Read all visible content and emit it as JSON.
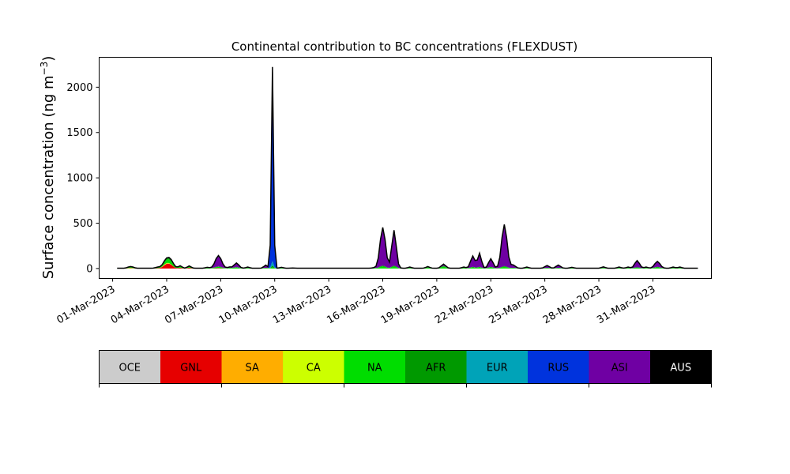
{
  "chart_data": {
    "type": "area",
    "title": "Continental contribution to BC concentrations (FLEXDUST)",
    "ylabel_main": "Surface concentration (ng m",
    "ylabel_exp": "−3",
    "ylabel_close": ")",
    "xlabel": "",
    "ylim": [
      -110,
      2330
    ],
    "xlim": [
      "2023-02-28T06:00",
      "2023-04-03T06:00"
    ],
    "yticks": [
      0,
      500,
      1000,
      1500,
      2000
    ],
    "xticks": [
      "01-Mar-2023",
      "04-Mar-2023",
      "07-Mar-2023",
      "10-Mar-2023",
      "13-Mar-2023",
      "16-Mar-2023",
      "19-Mar-2023",
      "22-Mar-2023",
      "25-Mar-2023",
      "28-Mar-2023",
      "31-Mar-2023"
    ],
    "xtick_dates": [
      "2023-03-01",
      "2023-03-04",
      "2023-03-07",
      "2023-03-10",
      "2023-03-13",
      "2023-03-16",
      "2023-03-19",
      "2023-03-22",
      "2023-03-25",
      "2023-03-28",
      "2023-03-31"
    ],
    "series_order": [
      "OCE",
      "GNL",
      "SA",
      "CA",
      "NA",
      "AFR",
      "EUR",
      "RUS",
      "ASI",
      "AUS"
    ],
    "legend": [
      {
        "name": "OCE",
        "color": "#cccccc",
        "text_color": "#000000"
      },
      {
        "name": "GNL",
        "color": "#e60000",
        "text_color": "#000000"
      },
      {
        "name": "SA",
        "color": "#ffad00",
        "text_color": "#000000"
      },
      {
        "name": "CA",
        "color": "#ccff00",
        "text_color": "#000000"
      },
      {
        "name": "NA",
        "color": "#00dd00",
        "text_color": "#000000"
      },
      {
        "name": "AFR",
        "color": "#009900",
        "text_color": "#000000"
      },
      {
        "name": "EUR",
        "color": "#00a3b8",
        "text_color": "#000000"
      },
      {
        "name": "RUS",
        "color": "#0033dd",
        "text_color": "#000000"
      },
      {
        "name": "ASI",
        "color": "#6f00a3",
        "text_color": "#000000"
      },
      {
        "name": "AUS",
        "color": "#000000",
        "text_color": "#ffffff"
      }
    ],
    "time_start": "2023-03-01T06:00",
    "time_step_hours": 3,
    "baseline": [
      {
        "t": "2023-03-01T06:00",
        "v": 3
      },
      {
        "t": "2023-04-02T12:00",
        "v": 3
      }
    ],
    "events": [
      {
        "t": "2023-03-02T00:00",
        "w": 0.15,
        "GNL": 3,
        "CA": 5,
        "NA": 5,
        "ASI": 6
      },
      {
        "t": "2023-03-03T12:00",
        "w": 0.12,
        "GNL": 3,
        "NA": 5,
        "ASI": 3
      },
      {
        "t": "2023-03-04T00:00",
        "w": 0.18,
        "GNL": 45,
        "SA": 5,
        "CA": 5,
        "NA": 30,
        "AFR": 10,
        "ASI": 5
      },
      {
        "t": "2023-03-04T06:00",
        "w": 0.15,
        "GNL": 25,
        "NA": 20,
        "AFR": 8,
        "ASI": 5
      },
      {
        "t": "2023-03-04T18:00",
        "w": 0.1,
        "GNL": 10,
        "NA": 12,
        "AFR": 5
      },
      {
        "t": "2023-03-05T06:00",
        "w": 0.1,
        "GNL": 10,
        "NA": 10,
        "AFR": 5
      },
      {
        "t": "2023-03-06T06:00",
        "w": 0.1,
        "NA": 5,
        "ASI": 5
      },
      {
        "t": "2023-03-06T21:00",
        "w": 0.17,
        "GNL": 5,
        "NA": 10,
        "AFR": 5,
        "ASI": 120
      },
      {
        "t": "2023-03-07T12:00",
        "w": 0.1,
        "NA": 5,
        "ASI": 8
      },
      {
        "t": "2023-03-07T21:00",
        "w": 0.13,
        "NA": 8,
        "AFR": 5,
        "ASI": 45
      },
      {
        "t": "2023-03-08T12:00",
        "w": 0.1,
        "NA": 5,
        "ASI": 8
      },
      {
        "t": "2023-03-09T12:00",
        "w": 0.1,
        "NA": 5,
        "ASI": 30
      },
      {
        "t": "2023-03-09T21:00",
        "w": 0.06,
        "NA": 10,
        "AFR": 20,
        "EUR": 50,
        "RUS": 2100,
        "ASI": 30,
        "AUS": 10
      },
      {
        "t": "2023-03-10T09:00",
        "w": 0.1,
        "NA": 5,
        "RUS": 5
      },
      {
        "t": "2023-03-11T00:00",
        "w": 0.1,
        "NA": 3
      },
      {
        "t": "2023-03-15T12:00",
        "w": 0.1,
        "NA": 5
      },
      {
        "t": "2023-03-16T00:00",
        "w": 0.15,
        "NA": 20,
        "AFR": 10,
        "ASI": 420
      },
      {
        "t": "2023-03-16T15:00",
        "w": 0.12,
        "NA": 20,
        "AFR": 10,
        "ASI": 390
      },
      {
        "t": "2023-03-17T12:00",
        "w": 0.1,
        "NA": 5,
        "ASI": 8
      },
      {
        "t": "2023-03-18T12:00",
        "w": 0.1,
        "NA": 10,
        "ASI": 8
      },
      {
        "t": "2023-03-19T09:00",
        "w": 0.12,
        "NA": 20,
        "AFR": 5,
        "ASI": 20
      },
      {
        "t": "2023-03-20T12:00",
        "w": 0.1,
        "NA": 8,
        "ASI": 5
      },
      {
        "t": "2023-03-21T00:00",
        "w": 0.12,
        "NA": 10,
        "AFR": 5,
        "ASI": 120
      },
      {
        "t": "2023-03-21T09:00",
        "w": 0.1,
        "NA": 10,
        "AFR": 5,
        "ASI": 150
      },
      {
        "t": "2023-03-22T00:00",
        "w": 0.12,
        "NA": 10,
        "AFR": 5,
        "ASI": 90
      },
      {
        "t": "2023-03-22T18:00",
        "w": 0.15,
        "NA": 15,
        "AFR": 8,
        "ASI": 460
      },
      {
        "t": "2023-03-23T06:00",
        "w": 0.12,
        "NA": 5,
        "ASI": 30
      },
      {
        "t": "2023-03-24T00:00",
        "w": 0.1,
        "NA": 5,
        "ASI": 8
      },
      {
        "t": "2023-03-25T03:00",
        "w": 0.12,
        "NA": 5,
        "ASI": 25
      },
      {
        "t": "2023-03-25T18:00",
        "w": 0.12,
        "NA": 5,
        "ASI": 30
      },
      {
        "t": "2023-03-26T12:00",
        "w": 0.1,
        "NA": 5,
        "ASI": 5
      },
      {
        "t": "2023-03-28T06:00",
        "w": 0.1,
        "NA": 5,
        "ASI": 10
      },
      {
        "t": "2023-03-29T03:00",
        "w": 0.1,
        "NA": 5,
        "ASI": 8
      },
      {
        "t": "2023-03-29T15:00",
        "w": 0.1,
        "NA": 5,
        "ASI": 8
      },
      {
        "t": "2023-03-30T03:00",
        "w": 0.13,
        "NA": 10,
        "ASI": 75
      },
      {
        "t": "2023-03-30T15:00",
        "w": 0.1,
        "NA": 5,
        "ASI": 8
      },
      {
        "t": "2023-03-31T06:00",
        "w": 0.15,
        "NA": 10,
        "AFR": 5,
        "ASI": 60
      },
      {
        "t": "2023-04-01T03:00",
        "w": 0.1,
        "NA": 5,
        "ASI": 8
      },
      {
        "t": "2023-04-01T12:00",
        "w": 0.1,
        "NA": 5,
        "ASI": 8
      }
    ],
    "grid": false
  }
}
